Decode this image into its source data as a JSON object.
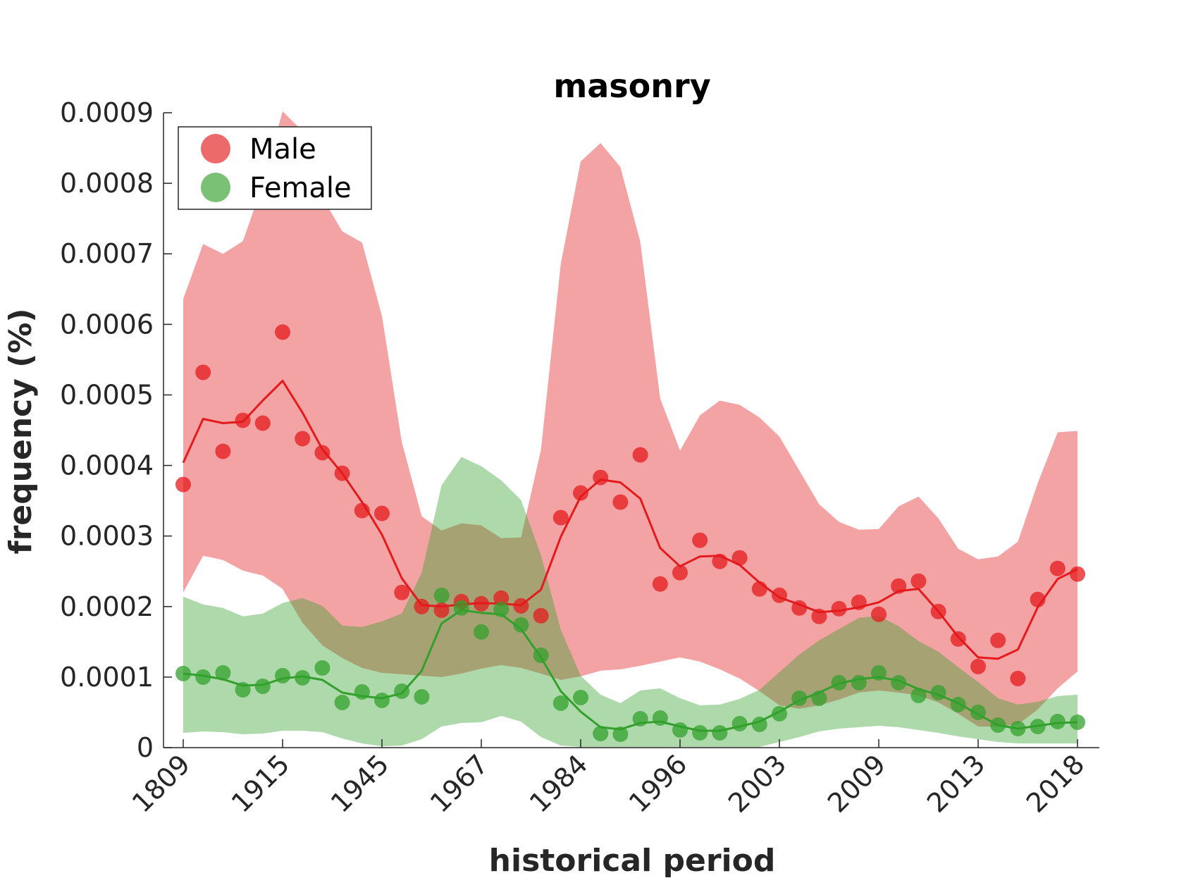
{
  "chart_data": {
    "type": "line",
    "title": "masonry",
    "xlabel": "historical period",
    "ylabel": "frequency (%)",
    "ylim": [
      0,
      0.0009
    ],
    "yticks": [
      "0",
      "0.0001",
      "0.0002",
      "0.0003",
      "0.0004",
      "0.0005",
      "0.0006",
      "0.0007",
      "0.0008",
      "0.0009"
    ],
    "xtick_labels": [
      "1809",
      "1915",
      "1945",
      "1967",
      "1984",
      "1996",
      "2003",
      "2009",
      "2013",
      "2018"
    ],
    "xtick_positions": [
      0,
      5,
      10,
      15,
      20,
      25,
      30,
      35,
      40,
      45
    ],
    "grid": false,
    "legend_position": "top-left",
    "series": [
      {
        "name": "Male",
        "color": "#e41a1c",
        "points": [
          0.000373,
          0.000532,
          0.00042,
          0.000464,
          0.00046,
          0.000589,
          0.000438,
          0.000418,
          0.000389,
          0.000336,
          0.000332,
          0.00022,
          0.0002,
          0.000195,
          0.000207,
          0.000204,
          0.000212,
          0.000201,
          0.000187,
          0.000326,
          0.000361,
          0.000383,
          0.000348,
          0.000415,
          0.000232,
          0.000248,
          0.000294,
          0.000264,
          0.000269,
          0.000225,
          0.000216,
          0.000198,
          0.000186,
          0.000197,
          0.000206,
          0.000189,
          0.000229,
          0.000236,
          0.000193,
          0.000154,
          0.000115,
          0.000152,
          9.8e-05,
          0.00021,
          0.000254,
          0.000246
        ],
        "smoothed": [
          0.000404,
          0.000466,
          0.00046,
          0.000462,
          0.000492,
          0.00052,
          0.000475,
          0.000423,
          0.000389,
          0.000348,
          0.000302,
          0.00024,
          0.000202,
          0.0002,
          0.000203,
          0.000205,
          0.000204,
          0.000202,
          0.000224,
          0.000299,
          0.000356,
          0.00038,
          0.000376,
          0.000353,
          0.000283,
          0.000257,
          0.000271,
          0.000272,
          0.000259,
          0.000234,
          0.000213,
          0.000203,
          0.000192,
          0.000194,
          0.000199,
          0.000206,
          0.000222,
          0.000225,
          0.000193,
          0.000157,
          0.000128,
          0.000126,
          0.000139,
          0.000199,
          0.000239,
          0.000253
        ],
        "band_upper": [
          0.000636,
          0.000714,
          0.0007,
          0.000718,
          0.000798,
          0.000902,
          0.000874,
          0.00078,
          0.000732,
          0.000716,
          0.000612,
          0.000433,
          0.000328,
          0.000308,
          0.000318,
          0.000315,
          0.000297,
          0.000298,
          0.000422,
          0.000686,
          0.000831,
          0.000857,
          0.000823,
          0.000717,
          0.000495,
          0.000421,
          0.000471,
          0.000492,
          0.000486,
          0.000468,
          0.000441,
          0.000393,
          0.000345,
          0.00032,
          0.000309,
          0.00031,
          0.000342,
          0.000356,
          0.000325,
          0.000282,
          0.000267,
          0.000271,
          0.000292,
          0.000375,
          0.000447,
          0.000449
        ],
        "band_lower": [
          0.00022,
          0.000272,
          0.000266,
          0.000251,
          0.000244,
          0.000225,
          0.000177,
          0.000145,
          0.000127,
          0.000113,
          0.000106,
          0.000104,
          0.000102,
          0.0001,
          0.000105,
          0.000112,
          0.000117,
          0.000113,
          0.000105,
          9.6e-05,
          0.000101,
          0.000109,
          0.000111,
          0.000116,
          0.000122,
          0.000128,
          0.000122,
          0.000111,
          9.8e-05,
          8e-05,
          6e-05,
          5.5e-05,
          6e-05,
          6.8e-05,
          7.8e-05,
          8.1e-05,
          7.8e-05,
          7.4e-05,
          6.4e-05,
          4.8e-05,
          3e-05,
          3e-05,
          3.3e-05,
          5.4e-05,
          8.4e-05,
          0.000108
        ]
      },
      {
        "name": "Female",
        "color": "#33a02c",
        "points": [
          0.000105,
          0.0001,
          0.000106,
          8.2e-05,
          8.7e-05,
          0.000102,
          9.9e-05,
          0.000113,
          6.4e-05,
          7.9e-05,
          6.7e-05,
          8e-05,
          7.2e-05,
          0.000216,
          0.000198,
          0.000164,
          0.000196,
          0.000174,
          0.000131,
          6.3e-05,
          7.1e-05,
          2e-05,
          1.9e-05,
          4.1e-05,
          4.2e-05,
          2.5e-05,
          2.1e-05,
          2.1e-05,
          3.4e-05,
          3.3e-05,
          4.8e-05,
          7e-05,
          7e-05,
          9.2e-05,
          9.2e-05,
          0.000106,
          9.2e-05,
          7.4e-05,
          7.8e-05,
          6.1e-05,
          5e-05,
          3.2e-05,
          2.7e-05,
          3e-05,
          3.7e-05,
          3.6e-05
        ],
        "smoothed": [
          0.000105,
          0.000102,
          9.7e-05,
          8.8e-05,
          8.9e-05,
          9.8e-05,
          0.000101,
          9.6e-05,
          7.8e-05,
          7.3e-05,
          7e-05,
          7.7e-05,
          0.000109,
          0.000176,
          0.000195,
          0.000191,
          0.000189,
          0.000168,
          0.000128,
          8e-05,
          5.1e-05,
          2.9e-05,
          2.6e-05,
          3.5e-05,
          3.7e-05,
          3e-05,
          2.4e-05,
          2.4e-05,
          3e-05,
          3.7e-05,
          5.1e-05,
          6.7e-05,
          7.8e-05,
          9.1e-05,
          9.7e-05,
          0.0001,
          9.5e-05,
          8.3e-05,
          7.5e-05,
          6.3e-05,
          4.7e-05,
          3.2e-05,
          2.7e-05,
          3.1e-05,
          3.5e-05,
          3.6e-05
        ],
        "band_upper": [
          0.000214,
          0.000203,
          0.000198,
          0.000186,
          0.00019,
          0.000205,
          0.000212,
          0.000201,
          0.000173,
          0.000171,
          0.000179,
          0.00019,
          0.000248,
          0.000372,
          0.000412,
          0.000399,
          0.000379,
          0.000351,
          0.000273,
          0.000167,
          0.000102,
          7.5e-05,
          6.3e-05,
          8.1e-05,
          8.4e-05,
          7e-05,
          6e-05,
          6.1e-05,
          6.9e-05,
          8.2e-05,
          0.000107,
          0.000132,
          0.000152,
          0.000168,
          0.000184,
          0.000187,
          0.000172,
          0.000151,
          0.000136,
          0.000114,
          9.3e-05,
          7e-05,
          6.1e-05,
          6.5e-05,
          7.3e-05,
          7.5e-05
        ],
        "band_lower": [
          2.1e-05,
          2.3e-05,
          2.2e-05,
          1.9e-05,
          2e-05,
          2.4e-05,
          2.4e-05,
          2.2e-05,
          1.3e-05,
          6e-06,
          2e-06,
          3e-06,
          1.2e-05,
          3e-05,
          3.5e-05,
          3.6e-05,
          4.5e-05,
          3.7e-05,
          1.5e-05,
          3e-06,
          1e-06,
          1e-06,
          1e-06,
          1e-06,
          1e-06,
          1e-06,
          1e-06,
          1e-06,
          1e-06,
          1e-06,
          8e-06,
          1.5e-05,
          2.3e-05,
          2.7e-05,
          2.9e-05,
          3.1e-05,
          2.9e-05,
          2.5e-05,
          2.1e-05,
          1.6e-05,
          1.2e-05,
          8e-06,
          6e-06,
          6e-06,
          6e-06,
          6e-06
        ]
      }
    ]
  }
}
